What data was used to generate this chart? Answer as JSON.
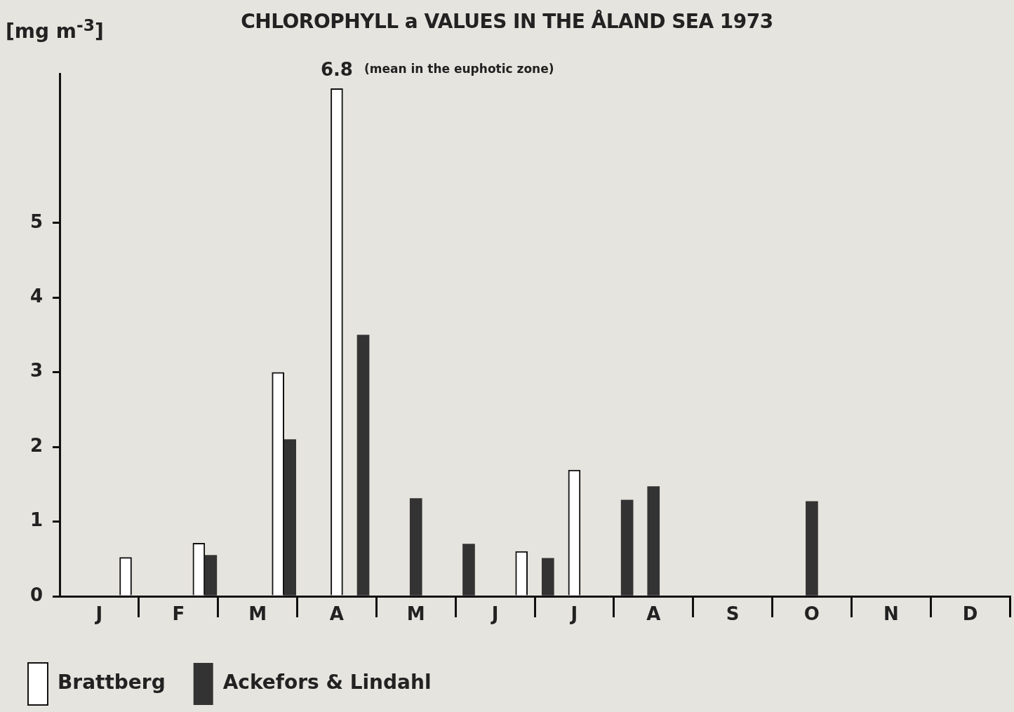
{
  "chart_data": {
    "type": "bar",
    "title": "CHLOROPHYLL a  VALUES IN THE ÅLAND SEA 1973",
    "ylabel": "[mg m$^{-3}$]",
    "annotations": [
      "(mean in the euphotic zone)"
    ],
    "categories": [
      null,
      "J",
      null,
      null,
      "F",
      null,
      null,
      "M",
      null,
      null,
      "A",
      null,
      null,
      "M",
      null,
      null,
      "J",
      null,
      null,
      "J",
      null,
      null,
      "A",
      null,
      null,
      "S",
      null,
      null,
      "O",
      null,
      null,
      "N",
      null,
      null,
      "D",
      null
    ],
    "ylim": [
      0,
      7
    ],
    "yticks": [
      0,
      1,
      2,
      3,
      4,
      5
    ],
    "grid": false,
    "legend": "bottom",
    "series": [
      {
        "name": "Brattberg",
        "color": "#ffffff",
        "values": [
          null,
          null,
          0.52,
          null,
          null,
          0.71,
          null,
          null,
          3.0,
          null,
          6.8,
          null,
          null,
          null,
          null,
          null,
          null,
          0.6,
          null,
          1.69,
          null,
          null,
          null,
          null,
          null,
          null,
          null,
          null,
          null,
          null,
          null,
          null,
          null,
          null,
          null,
          null
        ],
        "value_labels": [
          null,
          null,
          null,
          null,
          null,
          null,
          null,
          null,
          null,
          null,
          "6.8",
          null,
          null,
          null,
          null,
          null,
          null,
          null,
          null,
          null,
          null,
          null,
          null,
          null,
          null,
          null,
          null,
          null,
          null,
          null,
          null,
          null,
          null,
          null,
          null,
          null
        ]
      },
      {
        "name": "Ackefors & Lindahl",
        "color": "#333333",
        "values": [
          null,
          null,
          null,
          null,
          null,
          0.55,
          null,
          null,
          2.1,
          null,
          null,
          3.5,
          null,
          1.31,
          null,
          0.7,
          null,
          null,
          0.51,
          null,
          null,
          1.29,
          1.47,
          null,
          null,
          null,
          null,
          null,
          1.27,
          null,
          null,
          null,
          null,
          null,
          null,
          null
        ]
      }
    ]
  }
}
